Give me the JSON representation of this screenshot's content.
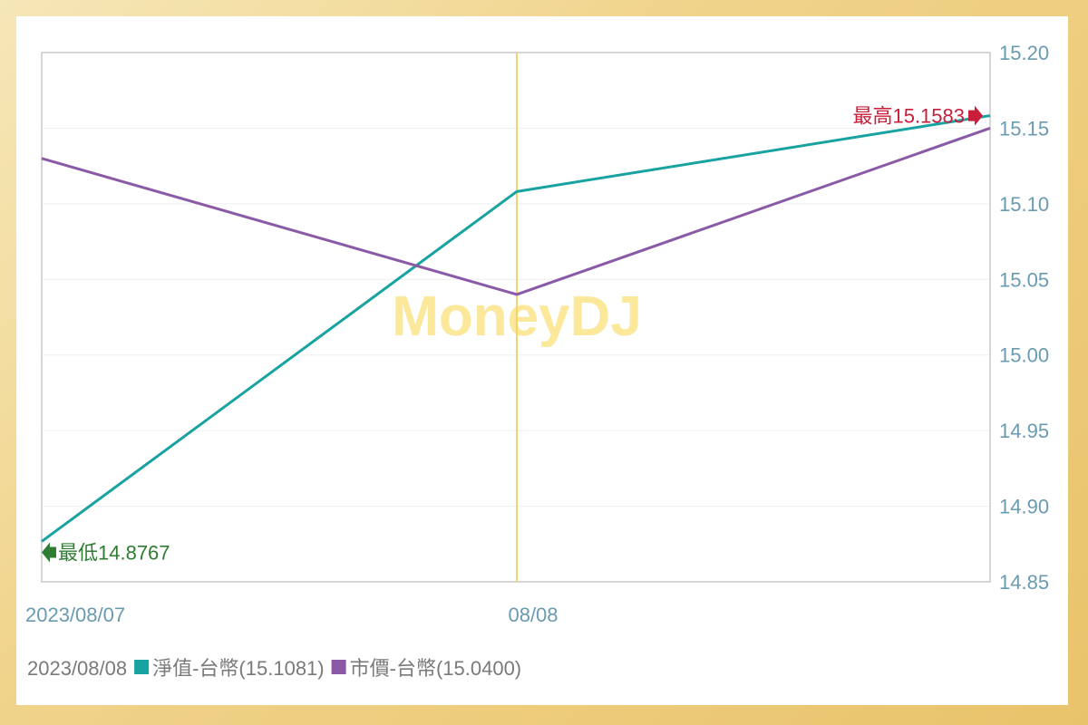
{
  "chart_data": {
    "type": "line",
    "watermark": "MoneyDJ",
    "x": [
      "2023/08/07",
      "08/08",
      ""
    ],
    "x_tick_labels": [
      "2023/08/07",
      "08/08"
    ],
    "ylim": [
      14.85,
      15.2
    ],
    "y_ticks": [
      "15.20",
      "15.15",
      "15.10",
      "15.05",
      "15.00",
      "14.95",
      "14.90",
      "14.85"
    ],
    "y_axis_side": "right",
    "grid": true,
    "crosshair_x": "08/08",
    "series": [
      {
        "name": "淨值-台幣",
        "color": "#19a3a0",
        "values": [
          14.8767,
          15.1081,
          15.1583
        ]
      },
      {
        "name": "市價-台幣",
        "color": "#8a5aa6",
        "values": [
          15.13,
          15.04,
          15.15
        ]
      }
    ],
    "annotations": {
      "high": {
        "label": "最高15.1583",
        "color": "#c81e3a"
      },
      "low": {
        "label": "最低14.8767",
        "color": "#2f7d32"
      }
    },
    "legend": {
      "date": "2023/08/08",
      "items": [
        {
          "label": "淨值-台幣(15.1081)",
          "color": "#19a3a0"
        },
        {
          "label": "市價-台幣(15.0400)",
          "color": "#8a5aa6"
        }
      ],
      "placement": "bottom-left"
    }
  }
}
